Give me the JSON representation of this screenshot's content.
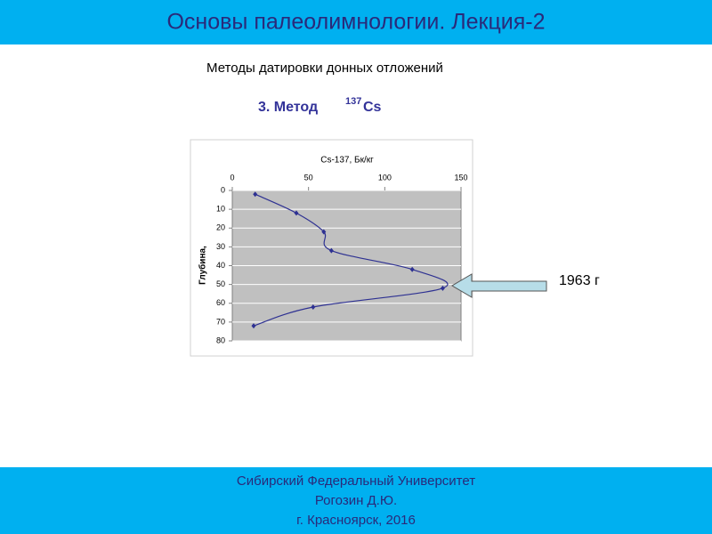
{
  "header": {
    "title": "Основы палеолимнологии. Лекция-2"
  },
  "subtitle": "Методы датировки донных отложений",
  "method": {
    "prefix": "3. Метод",
    "superscript": "137",
    "element": "Cs"
  },
  "chart_data": {
    "type": "scatter",
    "title": "Cs-137, Бк/кг",
    "y_label": "Глубина,",
    "x": [
      15,
      42,
      60,
      65,
      118,
      138,
      53,
      14
    ],
    "values": [
      2,
      12,
      22,
      32,
      42,
      52,
      62,
      72
    ],
    "color": "#2e3192",
    "xlim": [
      0,
      150
    ],
    "xticks": [
      0,
      50,
      100,
      150
    ],
    "ylim": [
      0,
      80
    ],
    "yticks": [
      0,
      10,
      20,
      30,
      40,
      50,
      60,
      70,
      80
    ],
    "y_reversed": true,
    "x_axis_top": true,
    "smooth": true,
    "grid": true,
    "annotation": "1963 г"
  },
  "footer": {
    "lines": [
      "Сибирский Федеральный Университет",
      "Рогозин Д.Ю.",
      "г. Красноярск, 2016"
    ]
  }
}
